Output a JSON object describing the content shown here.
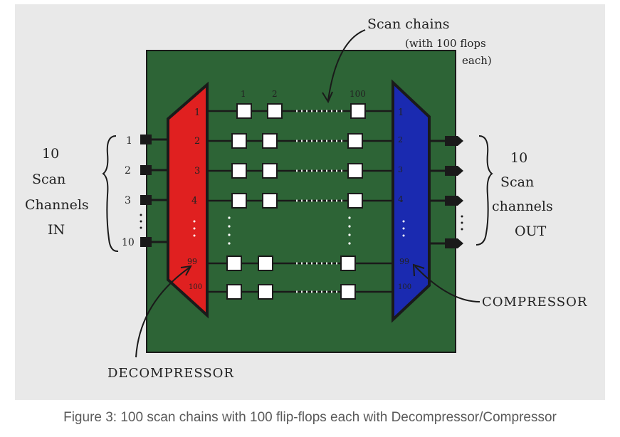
{
  "colors": {
    "board": "#2d6436",
    "decompressor": "#e02020",
    "compressor": "#1a2ab0",
    "ink": "#1a1a1a",
    "flop": "#ffffff",
    "background": "#e9e9e9"
  },
  "annotations": {
    "scan_chains_line1": "Scan chains",
    "scan_chains_line2": "(with 100 flops",
    "scan_chains_line3": "each)",
    "in_line1": "10",
    "in_line2": "Scan",
    "in_line3": "Channels",
    "in_line4": "IN",
    "out_line1": "10",
    "out_line2": "Scan",
    "out_line3": "channels",
    "out_line4": "OUT",
    "decompressor": "DECOMPRESSOR",
    "compressor": "COMPRESSOR"
  },
  "flop_column_labels": [
    "1",
    "2",
    "100"
  ],
  "decompressor_chain_labels": [
    "1",
    "2",
    "3",
    "4",
    "99",
    "100"
  ],
  "compressor_chain_labels": [
    "1",
    "2",
    "3",
    "4",
    "99",
    "100"
  ],
  "in_channel_labels": [
    "1",
    "2",
    "3",
    "10"
  ],
  "caption": "Figure 3: 100 scan chains with 100 flip-flops each with Decompressor/Compressor"
}
